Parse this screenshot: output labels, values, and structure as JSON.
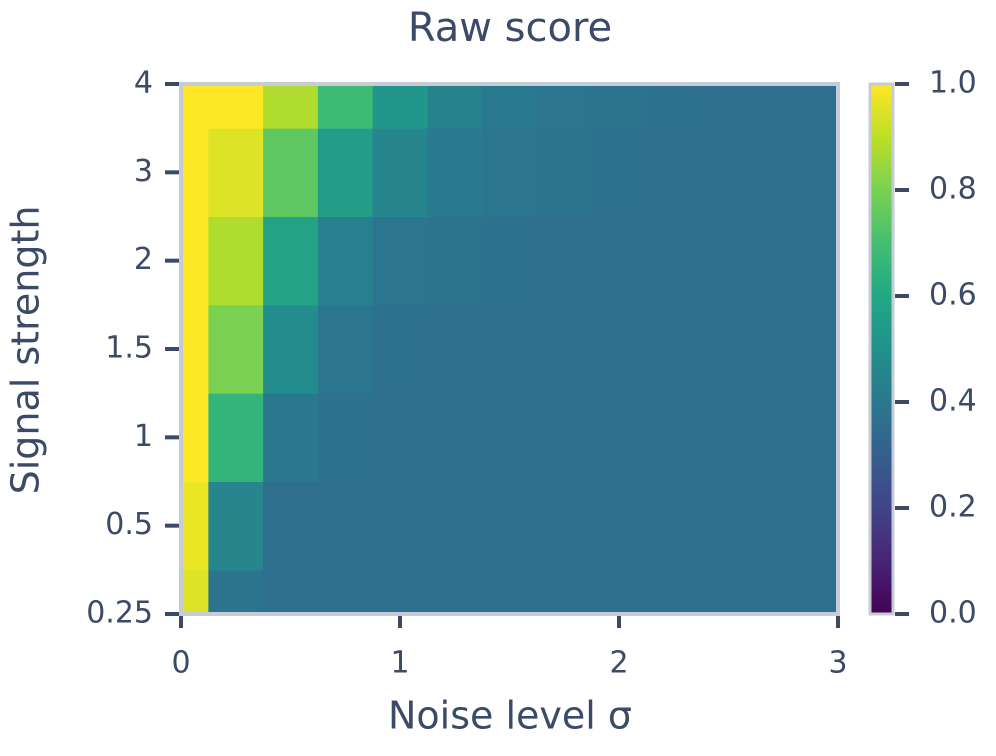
{
  "chart_data": {
    "type": "heatmap",
    "title": "Raw score",
    "x_label": "Noise level σ",
    "y_label": "Signal strength",
    "x": [
      0,
      0.25,
      0.5,
      0.75,
      1,
      1.25,
      1.5,
      1.75,
      2,
      2.25,
      2.5,
      2.75,
      3
    ],
    "xlim": [
      0,
      3
    ],
    "xticks": [
      0,
      1,
      2,
      3
    ],
    "y": [
      0.25,
      0.5,
      1,
      1.5,
      2,
      3,
      4
    ],
    "z": [
      [
        0.95,
        0.38,
        0.36,
        0.36,
        0.36,
        0.36,
        0.36,
        0.36,
        0.36,
        0.36,
        0.36,
        0.36,
        0.36
      ],
      [
        0.97,
        0.45,
        0.36,
        0.36,
        0.36,
        0.36,
        0.36,
        0.36,
        0.36,
        0.36,
        0.36,
        0.36,
        0.36
      ],
      [
        1,
        0.65,
        0.4,
        0.37,
        0.36,
        0.36,
        0.36,
        0.36,
        0.36,
        0.36,
        0.36,
        0.36,
        0.36
      ],
      [
        1,
        0.8,
        0.48,
        0.39,
        0.37,
        0.36,
        0.36,
        0.36,
        0.36,
        0.36,
        0.36,
        0.36,
        0.36
      ],
      [
        1,
        0.88,
        0.58,
        0.43,
        0.39,
        0.38,
        0.37,
        0.36,
        0.36,
        0.36,
        0.36,
        0.36,
        0.36
      ],
      [
        1,
        0.95,
        0.75,
        0.55,
        0.45,
        0.41,
        0.39,
        0.38,
        0.37,
        0.36,
        0.36,
        0.36,
        0.36
      ],
      [
        1,
        1,
        0.88,
        0.68,
        0.52,
        0.44,
        0.41,
        0.39,
        0.38,
        0.37,
        0.36,
        0.36,
        0.36
      ]
    ],
    "colormap": "viridis",
    "clim": [
      0,
      1
    ],
    "cticks": [
      {
        "value": 0,
        "label": "0.0"
      },
      0.2,
      0.4,
      0.6,
      0.8,
      {
        "value": 1,
        "label": "1.0"
      }
    ]
  }
}
